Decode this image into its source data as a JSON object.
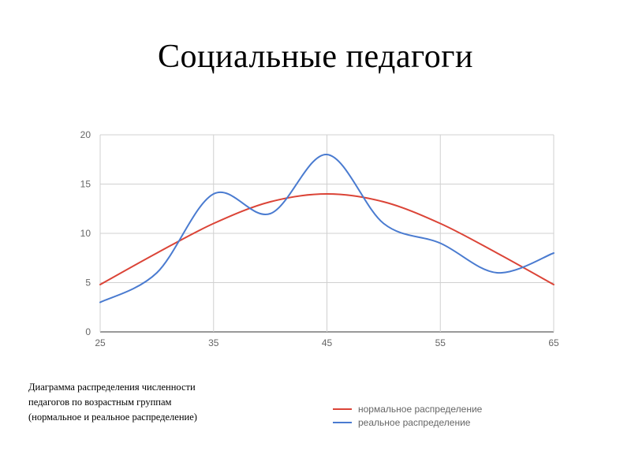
{
  "slide": {
    "title": "Социальные педагоги",
    "caption_lines": [
      "Диаграмма распределения численности",
      "педагогов по возрастным группам",
      "(нормальное и реальное распределение)"
    ]
  },
  "chart_data": {
    "type": "line",
    "x_ticks": [
      25,
      35,
      45,
      55,
      65
    ],
    "y_ticks": [
      0,
      5,
      10,
      15,
      20
    ],
    "xlim": [
      25,
      65
    ],
    "ylim": [
      0,
      20
    ],
    "grid": true,
    "legend_position": "bottom-right",
    "series": [
      {
        "name": "нормальное распределение",
        "color": "#db4437",
        "x": [
          25,
          30,
          35,
          40,
          45,
          50,
          55,
          60,
          65
        ],
        "y": [
          4.8,
          8.0,
          11.0,
          13.2,
          14.0,
          13.2,
          11.0,
          8.0,
          4.8
        ]
      },
      {
        "name": "реальное распределение",
        "color": "#4a7bd0",
        "x": [
          25,
          30,
          35,
          40,
          45,
          50,
          55,
          60,
          65
        ],
        "y": [
          3,
          6,
          14,
          12,
          18,
          11,
          9,
          6,
          8
        ]
      }
    ]
  }
}
